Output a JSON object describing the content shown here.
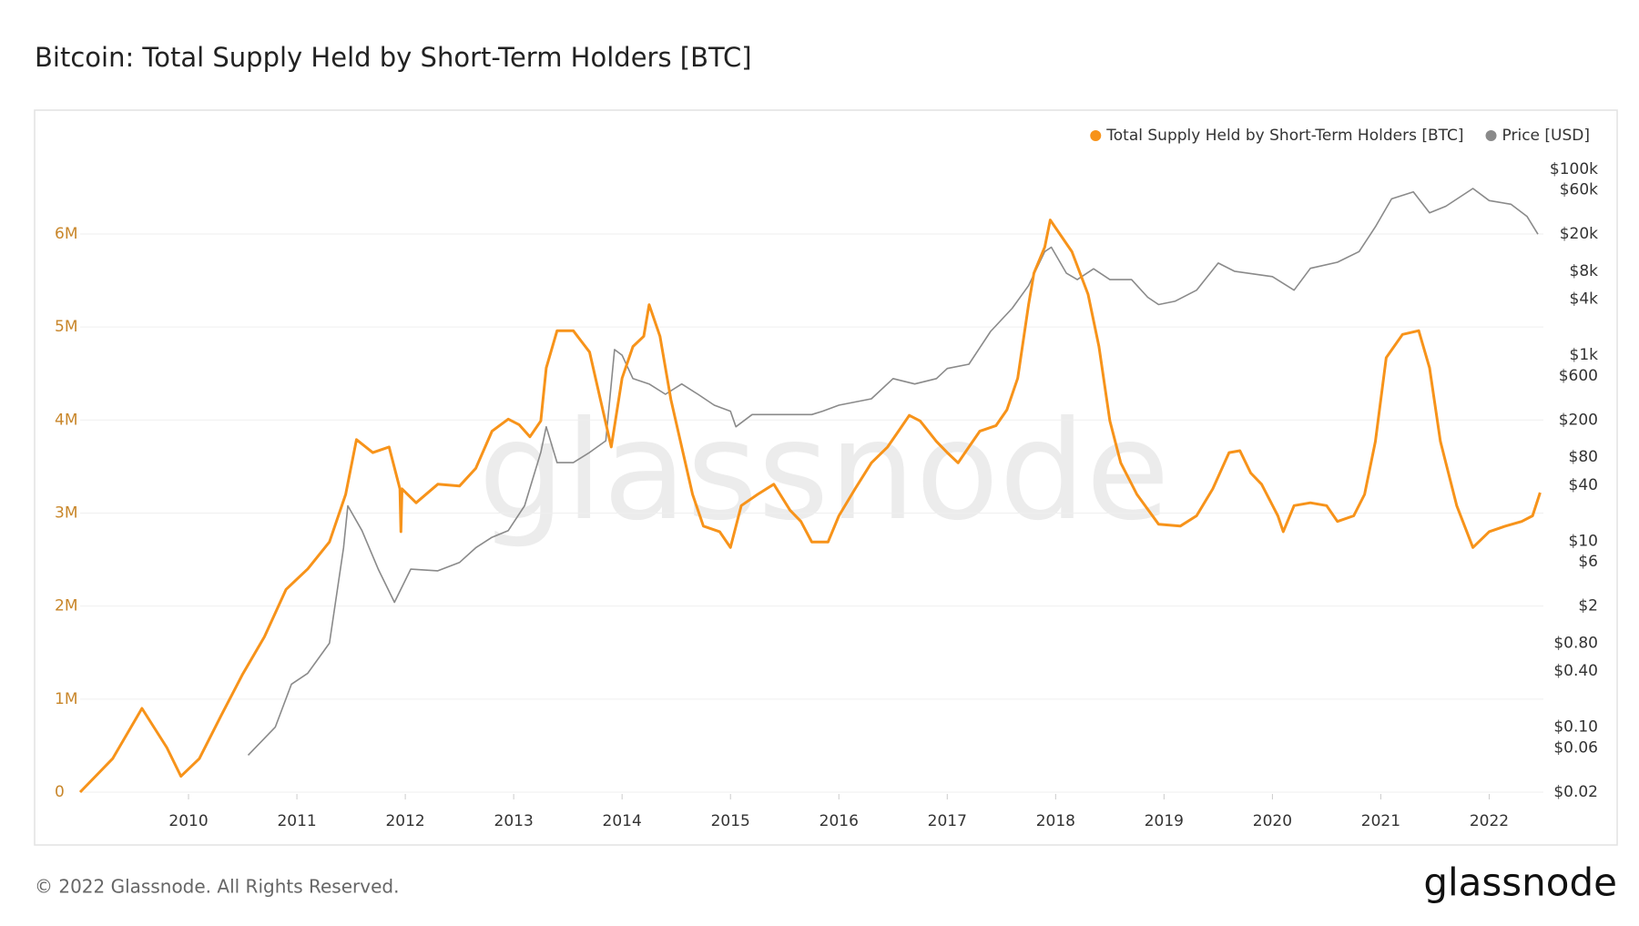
{
  "chart_data": {
    "type": "line",
    "title": "Bitcoin: Total Supply Held by Short-Term Holders [BTC]",
    "watermark": "glassnode",
    "xlim": [
      2009.0,
      2022.5
    ],
    "xticks": [
      2010,
      2011,
      2012,
      2013,
      2014,
      2015,
      2016,
      2017,
      2018,
      2019,
      2020,
      2021,
      2022
    ],
    "ylim": [
      0,
      6900000
    ],
    "yticks": [
      0,
      {
        "value": 1000000,
        "label": "1M"
      },
      {
        "value": 2000000,
        "label": "2M"
      },
      {
        "value": 3000000,
        "label": "3M"
      },
      {
        "value": 4000000,
        "label": "4M"
      },
      {
        "value": 5000000,
        "label": "5M"
      },
      {
        "value": 6000000,
        "label": "6M"
      }
    ],
    "y2lim": [
      0.02,
      160000
    ],
    "y2scale": "log",
    "y2ticks": [
      {
        "value": 0.02,
        "label": "$0.02"
      },
      {
        "value": 0.06,
        "label": "$0.06"
      },
      {
        "value": 0.1,
        "label": "$0.10"
      },
      {
        "value": 0.4,
        "label": "$0.40"
      },
      {
        "value": 0.8,
        "label": "$0.80"
      },
      {
        "value": 2,
        "label": "$2"
      },
      {
        "value": 6,
        "label": "$6"
      },
      {
        "value": 10,
        "label": "$10"
      },
      {
        "value": 40,
        "label": "$40"
      },
      {
        "value": 80,
        "label": "$80"
      },
      {
        "value": 200,
        "label": "$200"
      },
      {
        "value": 600,
        "label": "$600"
      },
      {
        "value": 1000,
        "label": "$1k"
      },
      {
        "value": 4000,
        "label": "$4k"
      },
      {
        "value": 8000,
        "label": "$8k"
      },
      {
        "value": 20000,
        "label": "$20k"
      },
      {
        "value": 60000,
        "label": "$60k"
      },
      {
        "value": 100000,
        "label": "$100k"
      }
    ],
    "grid": true,
    "legend": "top-right",
    "series": [
      {
        "name": "Total Supply Held by Short-Term Holders [BTC]",
        "color": "#f7931a",
        "x": [
          2009.0,
          2009.3,
          2009.57,
          2009.8,
          2009.93,
          2010.1,
          2010.3,
          2010.5,
          2010.7,
          2010.9,
          2011.1,
          2011.3,
          2011.45,
          2011.55,
          2011.7,
          2011.85,
          2011.95,
          2011.96,
          2011.97,
          2012.1,
          2012.3,
          2012.5,
          2012.65,
          2012.8,
          2012.95,
          2013.05,
          2013.15,
          2013.25,
          2013.3,
          2013.4,
          2013.55,
          2013.7,
          2013.8,
          2013.9,
          2014.0,
          2014.1,
          2014.2,
          2014.25,
          2014.35,
          2014.45,
          2014.55,
          2014.65,
          2014.75,
          2014.9,
          2015.0,
          2015.1,
          2015.25,
          2015.4,
          2015.55,
          2015.65,
          2015.75,
          2015.9,
          2016.0,
          2016.15,
          2016.3,
          2016.45,
          2016.55,
          2016.65,
          2016.75,
          2016.9,
          2017.0,
          2017.1,
          2017.2,
          2017.3,
          2017.45,
          2017.55,
          2017.65,
          2017.75,
          2017.8,
          2017.9,
          2017.95,
          2018.05,
          2018.15,
          2018.3,
          2018.4,
          2018.5,
          2018.6,
          2018.75,
          2018.95,
          2019.15,
          2019.3,
          2019.45,
          2019.6,
          2019.7,
          2019.8,
          2019.9,
          2020.05,
          2020.1,
          2020.2,
          2020.35,
          2020.5,
          2020.6,
          2020.75,
          2020.85,
          2020.95,
          2021.05,
          2021.2,
          2021.35,
          2021.45,
          2021.55,
          2021.7,
          2021.85,
          2022.0,
          2022.15,
          2022.3,
          2022.4,
          2022.47
        ],
        "values": [
          0,
          360000,
          900000,
          480000,
          170000,
          360000,
          820000,
          1270000,
          1670000,
          2180000,
          2400000,
          2690000,
          3200000,
          3790000,
          3650000,
          3710000,
          3260000,
          2800000,
          3260000,
          3110000,
          3310000,
          3290000,
          3480000,
          3880000,
          4010000,
          3950000,
          3820000,
          3990000,
          4560000,
          4960000,
          4960000,
          4730000,
          4220000,
          3710000,
          4450000,
          4790000,
          4900000,
          5240000,
          4900000,
          4220000,
          3710000,
          3200000,
          2860000,
          2800000,
          2630000,
          3080000,
          3200000,
          3310000,
          3030000,
          2910000,
          2690000,
          2690000,
          2970000,
          3260000,
          3540000,
          3710000,
          3880000,
          4050000,
          3990000,
          3770000,
          3650000,
          3540000,
          3710000,
          3880000,
          3940000,
          4110000,
          4450000,
          5240000,
          5580000,
          5860000,
          6150000,
          5980000,
          5810000,
          5350000,
          4790000,
          3990000,
          3540000,
          3200000,
          2880000,
          2860000,
          2970000,
          3260000,
          3650000,
          3670000,
          3430000,
          3310000,
          2970000,
          2800000,
          3080000,
          3110000,
          3080000,
          2910000,
          2970000,
          3200000,
          3770000,
          4670000,
          4920000,
          4960000,
          4560000,
          3770000,
          3080000,
          2630000,
          2800000,
          2860000,
          2910000,
          2970000,
          3220000
        ]
      },
      {
        "name": "Price [USD]",
        "color": "#8a8a8a",
        "axis": "y2",
        "x": [
          2010.55,
          2010.8,
          2010.95,
          2011.1,
          2011.3,
          2011.43,
          2011.47,
          2011.6,
          2011.75,
          2011.9,
          2012.05,
          2012.3,
          2012.5,
          2012.65,
          2012.8,
          2012.95,
          2013.1,
          2013.25,
          2013.3,
          2013.4,
          2013.55,
          2013.7,
          2013.85,
          2013.93,
          2014.0,
          2014.1,
          2014.25,
          2014.4,
          2014.55,
          2014.7,
          2014.85,
          2015.0,
          2015.05,
          2015.2,
          2015.5,
          2015.75,
          2015.85,
          2016.0,
          2016.3,
          2016.5,
          2016.7,
          2016.9,
          2017.0,
          2017.2,
          2017.4,
          2017.6,
          2017.75,
          2017.9,
          2017.96,
          2018.1,
          2018.2,
          2018.35,
          2018.5,
          2018.7,
          2018.85,
          2018.95,
          2019.1,
          2019.3,
          2019.5,
          2019.65,
          2019.85,
          2020.0,
          2020.2,
          2020.35,
          2020.6,
          2020.8,
          2020.95,
          2021.1,
          2021.3,
          2021.45,
          2021.6,
          2021.85,
          2022.0,
          2022.2,
          2022.35,
          2022.45
        ],
        "values": [
          0.05,
          0.1,
          0.29,
          0.38,
          0.8,
          8.5,
          24,
          13,
          5,
          2.2,
          5,
          4.8,
          5.9,
          8.5,
          11,
          13,
          24,
          90,
          170,
          70,
          70,
          90,
          120,
          1150,
          1000,
          560,
          490,
          380,
          490,
          380,
          290,
          250,
          170,
          230,
          230,
          230,
          250,
          290,
          340,
          560,
          490,
          560,
          720,
          800,
          1800,
          3200,
          5600,
          13000,
          14500,
          7600,
          6500,
          8500,
          6500,
          6500,
          4200,
          3500,
          3800,
          5000,
          9800,
          8000,
          7400,
          7000,
          5000,
          8600,
          10000,
          13000,
          24000,
          48000,
          57000,
          34000,
          40000,
          62000,
          46000,
          42000,
          31000,
          20000
        ]
      }
    ]
  },
  "footer": {
    "copyright": "© 2022 Glassnode. All Rights Reserved.",
    "logo": "glassnode"
  }
}
